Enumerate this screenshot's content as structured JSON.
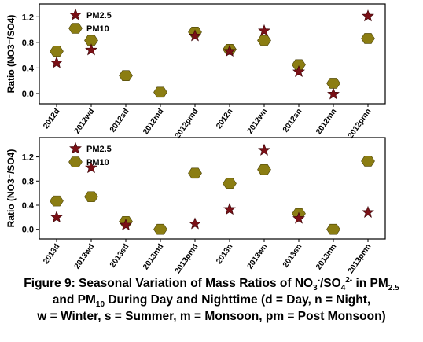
{
  "chart_data": [
    {
      "type": "scatter",
      "ylabel": "Ratio (NO3⁻/SO4)",
      "ylim": [
        -0.16,
        1.4
      ],
      "yticks": [
        "0.0",
        "0.4",
        "0.8",
        "1.2"
      ],
      "categories": [
        "2012d",
        "2012wd",
        "2012sd",
        "2012md",
        "2012pmd",
        "2012n",
        "2012wn",
        "2012sn",
        "2012mn",
        "2012pmn"
      ],
      "legend_position": "top-left",
      "series": [
        {
          "name": "PM2.5",
          "marker": "star",
          "color": "#7a1016",
          "values": [
            0.48,
            0.68,
            null,
            null,
            0.9,
            0.66,
            0.98,
            0.34,
            -0.01,
            1.21
          ]
        },
        {
          "name": "PM10",
          "marker": "hexagon",
          "color": "#8b7d12",
          "values": [
            0.66,
            0.83,
            0.28,
            0.02,
            0.96,
            0.69,
            0.83,
            0.45,
            0.16,
            0.86
          ]
        }
      ]
    },
    {
      "type": "scatter",
      "ylabel": "Ratio (NO3⁻/SO4)",
      "ylim": [
        -0.16,
        1.52
      ],
      "yticks": [
        "0.0",
        "0.4",
        "0.8",
        "1.2"
      ],
      "categories": [
        "2013d",
        "2013wd",
        "2013sd",
        "2013md",
        "2013pmd",
        "2013n",
        "2013wn",
        "2013sn",
        "2013mn",
        "2013pmn"
      ],
      "legend_position": "top-left",
      "series": [
        {
          "name": "PM2.5",
          "marker": "star",
          "color": "#7a1016",
          "values": [
            0.2,
            1.02,
            0.07,
            null,
            0.09,
            0.33,
            1.31,
            0.18,
            null,
            0.28
          ]
        },
        {
          "name": "PM10",
          "marker": "hexagon",
          "color": "#8b7d12",
          "values": [
            0.47,
            0.54,
            0.13,
            0.0,
            0.93,
            0.76,
            0.99,
            0.26,
            0.0,
            1.13
          ]
        }
      ]
    }
  ],
  "caption": {
    "line1_a": "Figure 9: Seasonal Variation of Mass Ratios of NO",
    "line1_sub1": "3",
    "line1_sup1": "-",
    "line1_b": "/SO",
    "line1_sub2": "4",
    "line1_sup2": "2-",
    "line1_c": " in PM",
    "line1_sub3": "2.5",
    "line2_a": "and PM",
    "line2_sub": "10",
    "line2_b": " During Day and Nighttime (d = Day, n = Night,",
    "line3": "w = Winter, s = Summer, m = Monsoon, pm = Post Monsoon)"
  }
}
